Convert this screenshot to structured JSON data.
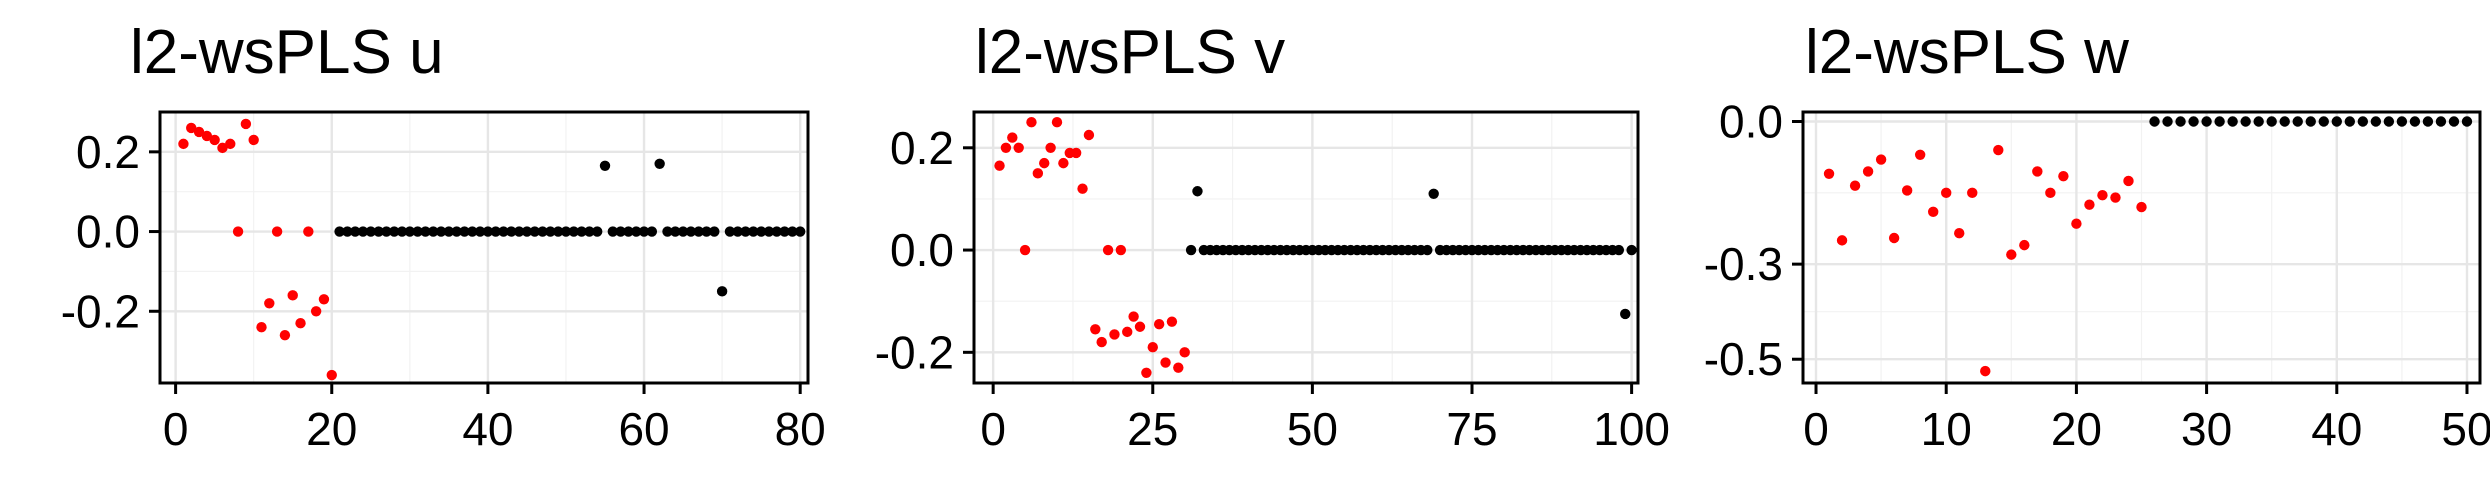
{
  "colors": {
    "selected": "#ff0000",
    "unselected": "#000000"
  },
  "chart_data": [
    {
      "type": "scatter",
      "title": "l2-wsPLS u",
      "xlabel": "",
      "ylabel": "",
      "xlim": [
        -2,
        81
      ],
      "ylim": [
        -0.38,
        0.3
      ],
      "xticks": [
        0,
        20,
        40,
        60,
        80
      ],
      "xtick_labels": [
        "0",
        "20",
        "40",
        "60",
        "80"
      ],
      "yticks": [
        -0.2,
        0.0,
        0.2
      ],
      "ytick_labels": [
        "-0.2",
        "0.0",
        "0.2"
      ],
      "grid": true,
      "x": [
        1,
        2,
        3,
        4,
        5,
        6,
        7,
        8,
        9,
        10,
        11,
        12,
        13,
        14,
        15,
        16,
        17,
        18,
        19,
        20,
        21,
        22,
        23,
        24,
        25,
        26,
        27,
        28,
        29,
        30,
        31,
        32,
        33,
        34,
        35,
        36,
        37,
        38,
        39,
        40,
        41,
        42,
        43,
        44,
        45,
        46,
        47,
        48,
        49,
        50,
        51,
        52,
        53,
        54,
        55,
        56,
        57,
        58,
        59,
        60,
        61,
        62,
        63,
        64,
        65,
        66,
        67,
        68,
        69,
        70,
        71,
        72,
        73,
        74,
        75,
        76,
        77,
        78,
        79,
        80
      ],
      "y": [
        0.22,
        0.26,
        0.25,
        0.24,
        0.23,
        0.21,
        0.22,
        0.0,
        0.27,
        0.23,
        -0.24,
        -0.18,
        0.0,
        -0.26,
        -0.16,
        -0.23,
        0.0,
        -0.2,
        -0.17,
        -0.36,
        0,
        0,
        0,
        0,
        0,
        0,
        0,
        0,
        0,
        0,
        0,
        0,
        0,
        0,
        0,
        0,
        0,
        0,
        0,
        0,
        0,
        0,
        0,
        0,
        0,
        0,
        0,
        0,
        0,
        0,
        0,
        0,
        0,
        0,
        0.165,
        0,
        0,
        0,
        0,
        0,
        0,
        0.17,
        0,
        0,
        0,
        0,
        0,
        0,
        0,
        -0.15,
        0,
        0,
        0,
        0,
        0,
        0,
        0,
        0,
        0,
        0
      ],
      "selected_count": 20
    },
    {
      "type": "scatter",
      "title": "l2-wsPLS v",
      "xlabel": "",
      "ylabel": "",
      "xlim": [
        -3,
        101
      ],
      "ylim": [
        -0.26,
        0.27
      ],
      "xticks": [
        0,
        25,
        50,
        75,
        100
      ],
      "xtick_labels": [
        "0",
        "25",
        "50",
        "75",
        "100"
      ],
      "yticks": [
        -0.2,
        0.0,
        0.2
      ],
      "ytick_labels": [
        "-0.2",
        "0.0",
        "0.2"
      ],
      "grid": true,
      "x": [
        1,
        2,
        3,
        4,
        5,
        6,
        7,
        8,
        9,
        10,
        11,
        12,
        13,
        14,
        15,
        16,
        17,
        18,
        19,
        20,
        21,
        22,
        23,
        24,
        25,
        26,
        27,
        28,
        29,
        30,
        31,
        32,
        33,
        34,
        35,
        36,
        37,
        38,
        39,
        40,
        41,
        42,
        43,
        44,
        45,
        46,
        47,
        48,
        49,
        50,
        51,
        52,
        53,
        54,
        55,
        56,
        57,
        58,
        59,
        60,
        61,
        62,
        63,
        64,
        65,
        66,
        67,
        68,
        69,
        70,
        71,
        72,
        73,
        74,
        75,
        76,
        77,
        78,
        79,
        80,
        81,
        82,
        83,
        84,
        85,
        86,
        87,
        88,
        89,
        90,
        91,
        92,
        93,
        94,
        95,
        96,
        97,
        98,
        99,
        100
      ],
      "y": [
        0.165,
        0.2,
        0.22,
        0.2,
        0.0,
        0.25,
        0.15,
        0.17,
        0.2,
        0.25,
        0.17,
        0.19,
        0.19,
        0.12,
        0.225,
        -0.155,
        -0.18,
        0.0,
        -0.165,
        0.0,
        -0.16,
        -0.13,
        -0.15,
        -0.24,
        -0.19,
        -0.145,
        -0.22,
        -0.14,
        -0.23,
        -0.2,
        0,
        0.115,
        0,
        0,
        0,
        0,
        0,
        0,
        0,
        0,
        0,
        0,
        0,
        0,
        0,
        0,
        0,
        0,
        0,
        0,
        0,
        0,
        0,
        0,
        0,
        0,
        0,
        0,
        0,
        0,
        0,
        0,
        0,
        0,
        0,
        0,
        0,
        0,
        0.11,
        0,
        0,
        0,
        0,
        0,
        0,
        0,
        0,
        0,
        0,
        0,
        0,
        0,
        0,
        0,
        0,
        0,
        0,
        0,
        0,
        0,
        0,
        0,
        0,
        0,
        0,
        0,
        0,
        0,
        -0.125,
        0
      ],
      "selected_count": 30
    },
    {
      "type": "scatter",
      "title": "l2-wsPLS w",
      "xlabel": "",
      "ylabel": "",
      "xlim": [
        -1,
        51
      ],
      "ylim": [
        -0.55,
        0.02
      ],
      "xticks": [
        0,
        10,
        20,
        30,
        40,
        50
      ],
      "xtick_labels": [
        "0",
        "10",
        "20",
        "30",
        "40",
        "50"
      ],
      "yticks": [
        -0.5,
        -0.3,
        0.0
      ],
      "ytick_labels": [
        "-0.5",
        "-0.3",
        "0.0"
      ],
      "grid": true,
      "x": [
        1,
        2,
        3,
        4,
        5,
        6,
        7,
        8,
        9,
        10,
        11,
        12,
        13,
        14,
        15,
        16,
        17,
        18,
        19,
        20,
        21,
        22,
        23,
        24,
        25,
        26,
        27,
        28,
        29,
        30,
        31,
        32,
        33,
        34,
        35,
        36,
        37,
        38,
        39,
        40,
        41,
        42,
        43,
        44,
        45,
        46,
        47,
        48,
        49,
        50
      ],
      "y": [
        -0.11,
        -0.25,
        -0.135,
        -0.105,
        -0.08,
        -0.245,
        -0.145,
        -0.07,
        -0.19,
        -0.15,
        -0.235,
        -0.15,
        -0.525,
        -0.06,
        -0.28,
        -0.26,
        -0.105,
        -0.15,
        -0.115,
        -0.215,
        -0.175,
        -0.155,
        -0.16,
        -0.125,
        -0.18,
        0,
        0,
        0,
        0,
        0,
        0,
        0,
        0,
        0,
        0,
        0,
        0,
        0,
        0,
        0,
        0,
        0,
        0,
        0,
        0,
        0,
        0,
        0,
        0,
        0
      ],
      "selected_count": 25
    }
  ]
}
